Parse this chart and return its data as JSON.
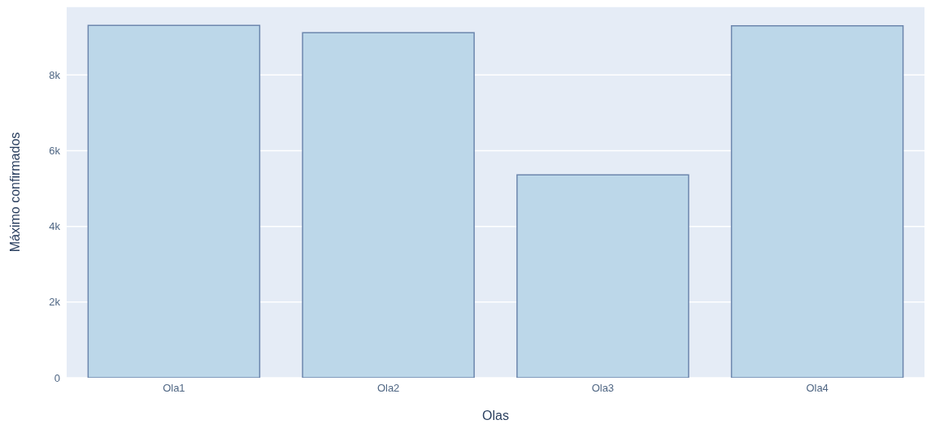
{
  "chart_data": {
    "type": "bar",
    "xlabel": "Olas",
    "ylabel": "Máximo confirmados",
    "categories": [
      "Ola1",
      "Ola2",
      "Ola3",
      "Ola4"
    ],
    "series": [
      {
        "color": "#bcd7e9",
        "values": [
          9310,
          9120,
          5360,
          9300
        ]
      }
    ],
    "ylim": [
      0,
      9810
    ],
    "yticks": [
      0,
      {
        "value": 2000,
        "label": "2k"
      },
      {
        "value": 4000,
        "label": "4k"
      },
      {
        "value": 6000,
        "label": "6k"
      },
      {
        "value": 8000,
        "label": "8k"
      }
    ],
    "grid": "y"
  }
}
